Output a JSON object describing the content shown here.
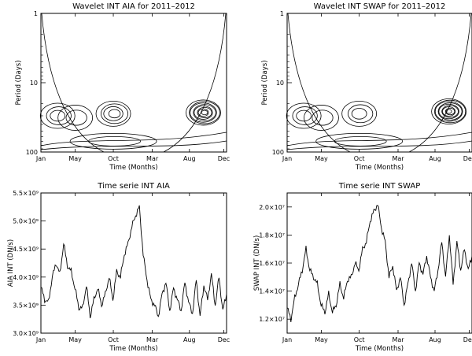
{
  "chart_data": [
    {
      "type": "contour",
      "title": "Wavelet INT AIA for 2011–2012",
      "xlabel": "Time (Months)",
      "ylabel": "Period (Days)",
      "x_ticks": [
        "Jan",
        "May",
        "Oct",
        "Mar",
        "Aug",
        "Dec"
      ],
      "y_ticks": [
        "1",
        "10",
        "100"
      ],
      "y_scale": "log",
      "ylim": [
        100,
        1
      ],
      "contours": [
        {
          "period_center": 30,
          "time_center": "Mar",
          "levels": 3
        },
        {
          "period_center": 32,
          "time_center": "May",
          "levels": 2
        },
        {
          "period_center": 28,
          "time_center": "Oct",
          "levels": 4
        },
        {
          "period_center": 27,
          "time_center": "Aug",
          "levels": 8
        },
        {
          "period_center": 70,
          "time_center": "Oct",
          "levels": 2
        }
      ]
    },
    {
      "type": "contour",
      "title": "Wavelet INT SWAP for 2011–2012",
      "xlabel": "Time (Months)",
      "ylabel": "Period (Days)",
      "x_ticks": [
        "Jan",
        "May",
        "Oct",
        "Mar",
        "Aug",
        "Dec"
      ],
      "y_ticks": [
        "1",
        "10",
        "100"
      ],
      "y_scale": "log",
      "ylim": [
        100,
        1
      ],
      "contours": [
        {
          "period_center": 30,
          "time_center": "Mar",
          "levels": 3
        },
        {
          "period_center": 32,
          "time_center": "May",
          "levels": 2
        },
        {
          "period_center": 28,
          "time_center": "Oct",
          "levels": 3
        },
        {
          "period_center": 26,
          "time_center": "Aug",
          "levels": 9
        },
        {
          "period_center": 70,
          "time_center": "Oct",
          "levels": 2
        }
      ]
    },
    {
      "type": "line",
      "title": "Time serie INT AIA",
      "xlabel": "Time (Months)",
      "ylabel": "AIA INT (DN/s)",
      "x_ticks": [
        "Jan",
        "May",
        "Oct",
        "Mar",
        "Aug",
        "Dec"
      ],
      "y_ticks": [
        "3.0×10⁹",
        "3.5×10⁹",
        "4.0×10⁹",
        "4.5×10⁹",
        "5.0×10⁹",
        "5.5×10⁹"
      ],
      "ylim": [
        3000000000.0,
        5500000000.0
      ],
      "series": [
        {
          "values": [
            3820000000.0,
            3600000000.0,
            3550000000.0,
            4000000000.0,
            4250000000.0,
            4050000000.0,
            4600000000.0,
            4200000000.0,
            4100000000.0,
            3800000000.0,
            3450000000.0,
            3450000000.0,
            3850000000.0,
            3300000000.0,
            3600000000.0,
            3800000000.0,
            3500000000.0,
            3700000000.0,
            4000000000.0,
            3600000000.0,
            4100000000.0,
            4000000000.0,
            4400000000.0,
            4600000000.0,
            4900000000.0,
            5100000000.0,
            5250000000.0,
            4400000000.0,
            3950000000.0,
            3600000000.0,
            3500000000.0,
            3300000000.0,
            3700000000.0,
            3900000000.0,
            3400000000.0,
            3800000000.0,
            3600000000.0,
            3400000000.0,
            3900000000.0,
            3550000000.0,
            3350000000.0,
            3950000000.0,
            3300000000.0,
            3850000000.0,
            3600000000.0,
            4050000000.0,
            3500000000.0,
            4000000000.0,
            3400000000.0,
            3700000000.0
          ]
        }
      ]
    },
    {
      "type": "line",
      "title": "Time serie INT SWAP",
      "xlabel": "Time (Months)",
      "ylabel": "SWAP INT (DN/s)",
      "x_ticks": [
        "Jan",
        "May",
        "Oct",
        "Mar",
        "Aug",
        "Dec"
      ],
      "y_ticks": [
        "1.2×10⁷",
        "1.4×10⁷",
        "1.6×10⁷",
        "1.8×10⁷",
        "2.0×10⁷"
      ],
      "ylim": [
        11000000.0,
        21000000.0
      ],
      "series": [
        {
          "values": [
            12800000.0,
            12000000.0,
            13500000.0,
            14500000.0,
            15500000.0,
            17000000.0,
            15500000.0,
            15000000.0,
            14500000.0,
            13000000.0,
            12500000.0,
            13800000.0,
            12500000.0,
            13000000.0,
            14500000.0,
            13500000.0,
            14800000.0,
            15000000.0,
            16000000.0,
            15500000.0,
            17000000.0,
            17500000.0,
            19000000.0,
            19700000.0,
            20200000.0,
            18500000.0,
            17500000.0,
            15000000.0,
            15800000.0,
            14000000.0,
            15000000.0,
            13000000.0,
            14500000.0,
            16000000.0,
            14000000.0,
            16000000.0,
            15200000.0,
            16500000.0,
            15000000.0,
            14000000.0,
            15500000.0,
            17500000.0,
            15000000.0,
            18000000.0,
            14500000.0,
            17500000.0,
            15500000.0,
            17000000.0,
            15500000.0,
            16500000.0
          ]
        }
      ]
    }
  ]
}
